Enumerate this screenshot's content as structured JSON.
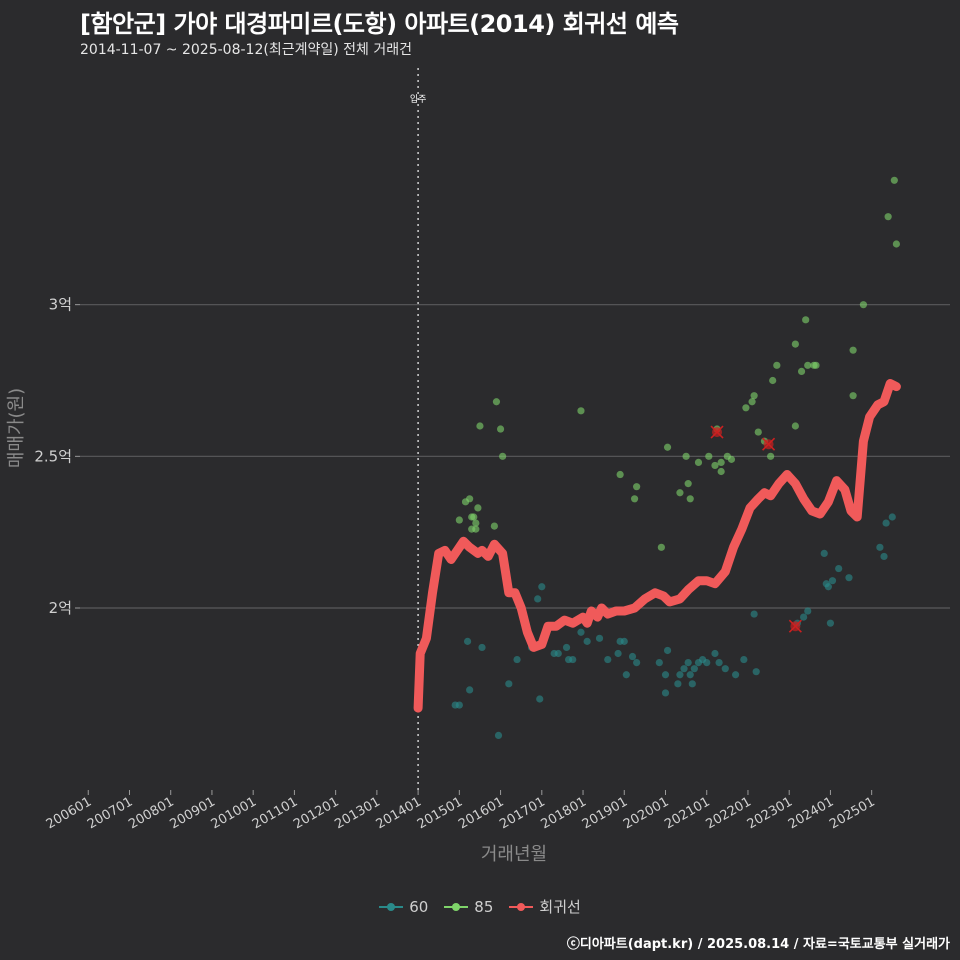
{
  "header": {
    "title": "[함안군] 가야 대경파미르(도항) 아파트(2014) 회귀선 예측",
    "subtitle": "2014-11-07 ~ 2025-08-12(최근계약일) 전체 거래건"
  },
  "caption": "ⓒ디아파트(dapt.kr) / 2025.08.14 / 자료=국토교통부 실거래가",
  "colors": {
    "background": "#2b2b2d",
    "grid": "#5a5a5c",
    "s60": "#2a8a8a",
    "s85": "#7fd46a",
    "regression": "#f05a5a",
    "outlier": "#cc2020"
  },
  "chart_data": {
    "type": "scatter",
    "title": "[함안군] 가야 대경파미르(도항) 아파트(2014) 회귀선 예측",
    "xlabel": "거래년월",
    "ylabel": "매매가(원)",
    "x_unit": "year-fraction",
    "xlim": [
      2005.8,
      2026.9
    ],
    "ylim": [
      1.4,
      3.8
    ],
    "y_ticks": [
      {
        "value": 2.0,
        "label": "2억"
      },
      {
        "value": 2.5,
        "label": "2.5억"
      },
      {
        "value": 3.0,
        "label": "3억"
      }
    ],
    "x_ticks": [
      {
        "value": 2006,
        "label": "200601"
      },
      {
        "value": 2007,
        "label": "200701"
      },
      {
        "value": 2008,
        "label": "200801"
      },
      {
        "value": 2009,
        "label": "200901"
      },
      {
        "value": 2010,
        "label": "201001"
      },
      {
        "value": 2011,
        "label": "201101"
      },
      {
        "value": 2012,
        "label": "201201"
      },
      {
        "value": 2013,
        "label": "201301"
      },
      {
        "value": 2014,
        "label": "201401"
      },
      {
        "value": 2015,
        "label": "201501"
      },
      {
        "value": 2016,
        "label": "201601"
      },
      {
        "value": 2017,
        "label": "201701"
      },
      {
        "value": 2018,
        "label": "201801"
      },
      {
        "value": 2019,
        "label": "201901"
      },
      {
        "value": 2020,
        "label": "202001"
      },
      {
        "value": 2021,
        "label": "202101"
      },
      {
        "value": 2022,
        "label": "202201"
      },
      {
        "value": 2023,
        "label": "202301"
      },
      {
        "value": 2024,
        "label": "202401"
      },
      {
        "value": 2025,
        "label": "202501"
      }
    ],
    "vline": {
      "x": 2014.0,
      "label": "입주"
    },
    "legend": [
      {
        "name": "60",
        "key": "s60"
      },
      {
        "name": "85",
        "key": "s85"
      },
      {
        "name": "회귀선",
        "key": "regression"
      }
    ],
    "series": [
      {
        "name": "60",
        "points": [
          [
            2014.9,
            1.68
          ],
          [
            2015.0,
            1.68
          ],
          [
            2015.2,
            1.89
          ],
          [
            2015.25,
            1.73
          ],
          [
            2015.55,
            1.87
          ],
          [
            2015.95,
            1.58
          ],
          [
            2016.2,
            1.75
          ],
          [
            2016.4,
            1.83
          ],
          [
            2016.75,
            1.87
          ],
          [
            2016.9,
            2.03
          ],
          [
            2017.0,
            2.07
          ],
          [
            2016.95,
            1.7
          ],
          [
            2017.3,
            1.85
          ],
          [
            2017.4,
            1.85
          ],
          [
            2017.6,
            1.87
          ],
          [
            2017.65,
            1.83
          ],
          [
            2017.75,
            1.83
          ],
          [
            2017.95,
            1.92
          ],
          [
            2018.1,
            1.89
          ],
          [
            2018.4,
            1.9
          ],
          [
            2018.6,
            1.83
          ],
          [
            2018.85,
            1.85
          ],
          [
            2018.9,
            1.89
          ],
          [
            2019.0,
            1.89
          ],
          [
            2019.05,
            1.78
          ],
          [
            2019.2,
            1.84
          ],
          [
            2019.3,
            1.82
          ],
          [
            2019.85,
            1.82
          ],
          [
            2020.0,
            1.72
          ],
          [
            2020.0,
            1.78
          ],
          [
            2020.05,
            1.86
          ],
          [
            2020.3,
            1.75
          ],
          [
            2020.35,
            1.78
          ],
          [
            2020.45,
            1.8
          ],
          [
            2020.55,
            1.82
          ],
          [
            2020.65,
            1.75
          ],
          [
            2020.6,
            1.78
          ],
          [
            2020.7,
            1.8
          ],
          [
            2020.8,
            1.82
          ],
          [
            2020.9,
            1.83
          ],
          [
            2021.0,
            1.82
          ],
          [
            2021.2,
            1.85
          ],
          [
            2021.3,
            1.82
          ],
          [
            2021.45,
            1.8
          ],
          [
            2021.7,
            1.78
          ],
          [
            2021.9,
            1.83
          ],
          [
            2022.15,
            1.98
          ],
          [
            2022.2,
            1.79
          ],
          [
            2023.2,
            1.95
          ],
          [
            2023.35,
            1.97
          ],
          [
            2023.45,
            1.99
          ],
          [
            2023.85,
            2.18
          ],
          [
            2023.9,
            2.08
          ],
          [
            2023.95,
            2.07
          ],
          [
            2024.05,
            2.09
          ],
          [
            2024.2,
            2.13
          ],
          [
            2024.45,
            2.1
          ],
          [
            2024.0,
            1.95
          ],
          [
            2025.2,
            2.2
          ],
          [
            2025.3,
            2.17
          ],
          [
            2025.35,
            2.28
          ],
          [
            2025.5,
            2.3
          ]
        ]
      },
      {
        "name": "85",
        "points": [
          [
            2015.0,
            2.29
          ],
          [
            2015.15,
            2.35
          ],
          [
            2015.25,
            2.36
          ],
          [
            2015.3,
            2.3
          ],
          [
            2015.35,
            2.3
          ],
          [
            2015.4,
            2.28
          ],
          [
            2015.3,
            2.26
          ],
          [
            2015.4,
            2.26
          ],
          [
            2015.45,
            2.33
          ],
          [
            2015.5,
            2.6
          ],
          [
            2015.85,
            2.27
          ],
          [
            2015.9,
            2.68
          ],
          [
            2016.0,
            2.59
          ],
          [
            2016.05,
            2.5
          ],
          [
            2017.95,
            2.65
          ],
          [
            2018.9,
            2.44
          ],
          [
            2019.25,
            2.36
          ],
          [
            2019.3,
            2.4
          ],
          [
            2019.9,
            2.2
          ],
          [
            2020.05,
            2.53
          ],
          [
            2020.35,
            2.38
          ],
          [
            2020.5,
            2.5
          ],
          [
            2020.55,
            2.41
          ],
          [
            2020.6,
            2.36
          ],
          [
            2020.8,
            2.48
          ],
          [
            2021.05,
            2.5
          ],
          [
            2021.2,
            2.47
          ],
          [
            2021.35,
            2.48
          ],
          [
            2021.35,
            2.45
          ],
          [
            2021.5,
            2.5
          ],
          [
            2021.6,
            2.49
          ],
          [
            2021.25,
            2.59
          ],
          [
            2021.95,
            2.66
          ],
          [
            2022.1,
            2.68
          ],
          [
            2022.15,
            2.7
          ],
          [
            2022.25,
            2.58
          ],
          [
            2022.4,
            2.55
          ],
          [
            2022.55,
            2.5
          ],
          [
            2022.6,
            2.75
          ],
          [
            2022.7,
            2.8
          ],
          [
            2023.15,
            2.87
          ],
          [
            2023.15,
            2.6
          ],
          [
            2023.3,
            2.78
          ],
          [
            2023.45,
            2.8
          ],
          [
            2023.4,
            2.95
          ],
          [
            2023.6,
            2.8
          ],
          [
            2023.65,
            2.8
          ],
          [
            2024.55,
            2.7
          ],
          [
            2024.55,
            2.85
          ],
          [
            2024.8,
            3.0
          ],
          [
            2025.4,
            3.29
          ],
          [
            2025.55,
            3.41
          ],
          [
            2025.6,
            3.2
          ]
        ]
      }
    ],
    "outliers": [
      [
        2021.25,
        2.58
      ],
      [
        2022.5,
        2.54
      ],
      [
        2023.15,
        1.94
      ]
    ],
    "regression": [
      [
        2014.0,
        1.67
      ],
      [
        2014.05,
        1.85
      ],
      [
        2014.2,
        1.9
      ],
      [
        2014.35,
        2.05
      ],
      [
        2014.5,
        2.18
      ],
      [
        2014.65,
        2.19
      ],
      [
        2014.8,
        2.16
      ],
      [
        2014.95,
        2.19
      ],
      [
        2015.1,
        2.22
      ],
      [
        2015.25,
        2.2
      ],
      [
        2015.45,
        2.18
      ],
      [
        2015.55,
        2.19
      ],
      [
        2015.7,
        2.17
      ],
      [
        2015.85,
        2.21
      ],
      [
        2016.05,
        2.18
      ],
      [
        2016.2,
        2.05
      ],
      [
        2016.35,
        2.05
      ],
      [
        2016.5,
        2.0
      ],
      [
        2016.65,
        1.92
      ],
      [
        2016.8,
        1.87
      ],
      [
        2017.0,
        1.88
      ],
      [
        2017.15,
        1.94
      ],
      [
        2017.35,
        1.94
      ],
      [
        2017.55,
        1.96
      ],
      [
        2017.75,
        1.95
      ],
      [
        2018.0,
        1.97
      ],
      [
        2018.1,
        1.95
      ],
      [
        2018.2,
        1.99
      ],
      [
        2018.35,
        1.97
      ],
      [
        2018.45,
        2.0
      ],
      [
        2018.6,
        1.98
      ],
      [
        2018.8,
        1.99
      ],
      [
        2019.0,
        1.99
      ],
      [
        2019.25,
        2.0
      ],
      [
        2019.5,
        2.03
      ],
      [
        2019.75,
        2.05
      ],
      [
        2019.95,
        2.04
      ],
      [
        2020.1,
        2.02
      ],
      [
        2020.35,
        2.03
      ],
      [
        2020.55,
        2.06
      ],
      [
        2020.8,
        2.09
      ],
      [
        2021.0,
        2.09
      ],
      [
        2021.2,
        2.08
      ],
      [
        2021.45,
        2.12
      ],
      [
        2021.65,
        2.2
      ],
      [
        2021.85,
        2.26
      ],
      [
        2022.05,
        2.33
      ],
      [
        2022.25,
        2.36
      ],
      [
        2022.4,
        2.38
      ],
      [
        2022.55,
        2.37
      ],
      [
        2022.75,
        2.41
      ],
      [
        2022.95,
        2.44
      ],
      [
        2023.15,
        2.41
      ],
      [
        2023.35,
        2.36
      ],
      [
        2023.55,
        2.32
      ],
      [
        2023.75,
        2.31
      ],
      [
        2023.95,
        2.35
      ],
      [
        2024.15,
        2.42
      ],
      [
        2024.35,
        2.39
      ],
      [
        2024.5,
        2.32
      ],
      [
        2024.65,
        2.3
      ],
      [
        2024.8,
        2.55
      ],
      [
        2024.95,
        2.63
      ],
      [
        2025.15,
        2.67
      ],
      [
        2025.3,
        2.68
      ],
      [
        2025.45,
        2.74
      ],
      [
        2025.6,
        2.73
      ]
    ]
  }
}
